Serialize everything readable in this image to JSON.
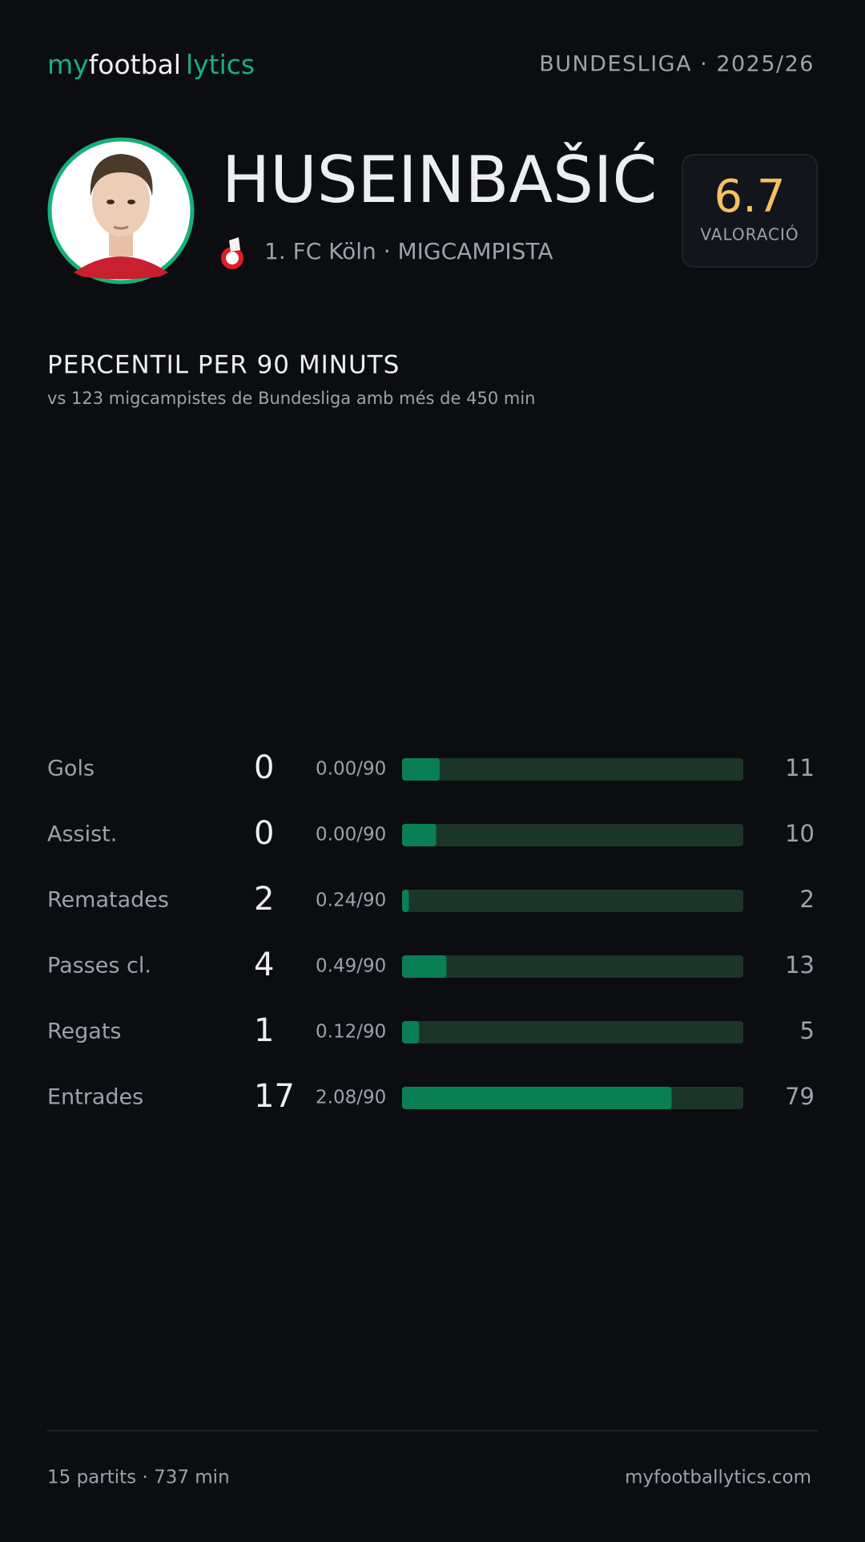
{
  "header": {
    "logo": [
      "my",
      "footbal",
      "lytics"
    ],
    "league": "BUNDESLIGA · 2025/26"
  },
  "player": {
    "name": "HUSEINBAŠIĆ",
    "club_position": "1. FC Köln · MIGCAMPISTA",
    "rating": "6.7",
    "rating_label": "VALORACIÓ"
  },
  "chart_data": {
    "type": "bar",
    "title": "PERCENTIL PER 90 MINUTS",
    "subtitle": "vs 123 migcampistes de Bundesliga amb més de 450 min",
    "categories": [
      "Gols",
      "Assist.",
      "Rematades",
      "Passes cl.",
      "Regats",
      "Entrades"
    ],
    "totals": [
      0,
      0,
      2,
      4,
      1,
      17
    ],
    "per_90": [
      "0.00/90",
      "0.00/90",
      "0.24/90",
      "0.49/90",
      "0.12/90",
      "2.08/90"
    ],
    "values": [
      11,
      10,
      2,
      13,
      5,
      79
    ],
    "xlim": [
      0,
      100
    ],
    "color": "#0a7f55",
    "track_color": "#1b3629"
  },
  "footer": {
    "stats": "15 partits · 737 min",
    "site": "myfootballytics.com"
  }
}
